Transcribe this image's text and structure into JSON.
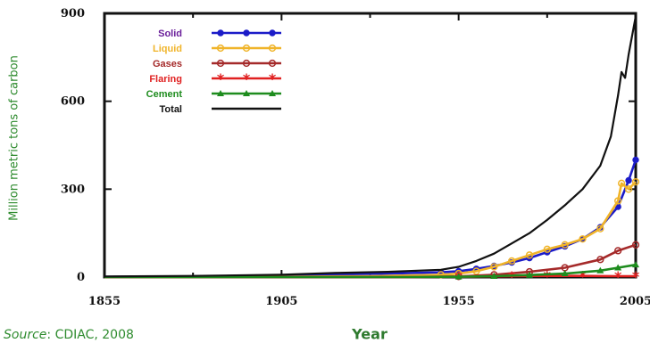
{
  "chart_data": {
    "type": "line",
    "title": "",
    "xlabel": "Year",
    "ylabel": "Million metric tons of carbon",
    "xlim": [
      1855,
      2005
    ],
    "ylim": [
      0,
      900
    ],
    "x_ticks": [
      "1855",
      "1905",
      "1955",
      "2005"
    ],
    "y_ticks": [
      "0",
      "300",
      "600",
      "900"
    ],
    "grid": false,
    "legend_position": "top-left",
    "series": [
      {
        "name": "Solid",
        "color": "#1c1cc8",
        "label_color": "#6a1f9a",
        "marker": "circle",
        "points": [
          [
            1855,
            1
          ],
          [
            1880,
            2
          ],
          [
            1905,
            5
          ],
          [
            1920,
            9
          ],
          [
            1935,
            12
          ],
          [
            1950,
            16
          ],
          [
            1955,
            20
          ],
          [
            1960,
            28
          ],
          [
            1965,
            38
          ],
          [
            1970,
            50
          ],
          [
            1975,
            65
          ],
          [
            1980,
            85
          ],
          [
            1985,
            105
          ],
          [
            1990,
            130
          ],
          [
            1995,
            170
          ],
          [
            2000,
            240
          ],
          [
            2003,
            330
          ],
          [
            2005,
            400
          ]
        ]
      },
      {
        "name": "Liquid",
        "color": "#f0b429",
        "label_color": "#f0b429",
        "marker": "circle-open",
        "points": [
          [
            1855,
            0
          ],
          [
            1905,
            1
          ],
          [
            1930,
            3
          ],
          [
            1950,
            8
          ],
          [
            1955,
            12
          ],
          [
            1960,
            20
          ],
          [
            1965,
            35
          ],
          [
            1970,
            55
          ],
          [
            1975,
            75
          ],
          [
            1980,
            95
          ],
          [
            1985,
            110
          ],
          [
            1990,
            130
          ],
          [
            1995,
            165
          ],
          [
            2000,
            260
          ],
          [
            2001,
            320
          ],
          [
            2003,
            300
          ],
          [
            2005,
            325
          ]
        ]
      },
      {
        "name": "Gases",
        "color": "#a52a2a",
        "label_color": "#a52a2a",
        "marker": "circle-open",
        "points": [
          [
            1855,
            0
          ],
          [
            1940,
            0
          ],
          [
            1955,
            2
          ],
          [
            1965,
            8
          ],
          [
            1975,
            18
          ],
          [
            1985,
            32
          ],
          [
            1995,
            60
          ],
          [
            2000,
            90
          ],
          [
            2005,
            110
          ]
        ]
      },
      {
        "name": "Flaring",
        "color": "#e02020",
        "label_color": "#e02020",
        "marker": "star",
        "points": [
          [
            1855,
            0
          ],
          [
            1940,
            0
          ],
          [
            1955,
            1
          ],
          [
            1970,
            3
          ],
          [
            1980,
            4
          ],
          [
            1990,
            4
          ],
          [
            2000,
            3
          ],
          [
            2005,
            3
          ]
        ]
      },
      {
        "name": "Cement",
        "color": "#1e8c1e",
        "label_color": "#1e8c1e",
        "marker": "triangle",
        "points": [
          [
            1855,
            0
          ],
          [
            1940,
            0
          ],
          [
            1955,
            1
          ],
          [
            1965,
            3
          ],
          [
            1975,
            7
          ],
          [
            1985,
            12
          ],
          [
            1995,
            22
          ],
          [
            2000,
            32
          ],
          [
            2005,
            42
          ]
        ]
      },
      {
        "name": "Total",
        "color": "#111111",
        "label_color": "#111111",
        "marker": "none",
        "points": [
          [
            1855,
            2
          ],
          [
            1880,
            4
          ],
          [
            1905,
            8
          ],
          [
            1920,
            14
          ],
          [
            1935,
            18
          ],
          [
            1950,
            25
          ],
          [
            1955,
            35
          ],
          [
            1960,
            55
          ],
          [
            1965,
            80
          ],
          [
            1970,
            115
          ],
          [
            1975,
            150
          ],
          [
            1980,
            195
          ],
          [
            1985,
            245
          ],
          [
            1990,
            300
          ],
          [
            1995,
            380
          ],
          [
            1998,
            480
          ],
          [
            2000,
            620
          ],
          [
            2001,
            700
          ],
          [
            2002,
            680
          ],
          [
            2003,
            760
          ],
          [
            2005,
            890
          ]
        ]
      }
    ]
  },
  "source": {
    "label": "Source",
    "text": ": CDIAC, 2008"
  }
}
